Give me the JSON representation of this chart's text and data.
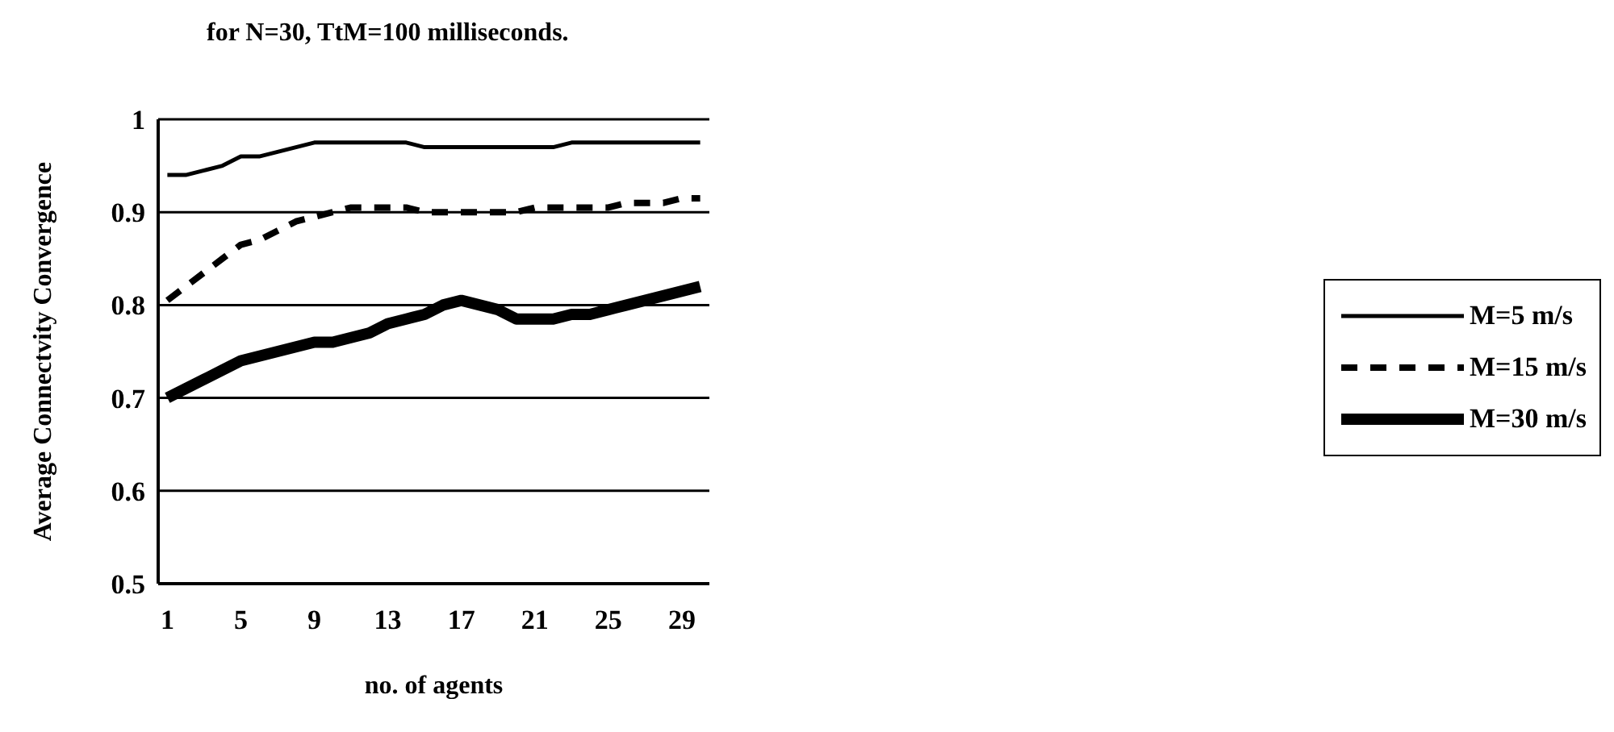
{
  "chart_data": {
    "type": "line",
    "title": "for N=30, TtM=100 milliseconds.",
    "xlabel": "no. of agents",
    "ylabel": "Average Connectvity Convergence",
    "x": [
      1,
      2,
      3,
      4,
      5,
      6,
      7,
      8,
      9,
      10,
      11,
      12,
      13,
      14,
      15,
      16,
      17,
      18,
      19,
      20,
      21,
      22,
      23,
      24,
      25,
      26,
      27,
      28,
      29,
      30
    ],
    "xlim": [
      0.5,
      30.5
    ],
    "xticks": [
      1,
      5,
      9,
      13,
      17,
      21,
      25,
      29
    ],
    "ylim": [
      0.5,
      1
    ],
    "yticks": [
      0.5,
      0.6,
      0.7,
      0.8,
      0.9,
      1
    ],
    "grid": "y",
    "legend": "right",
    "marker": "none",
    "series": [
      {
        "name": "M=5 m/s",
        "color": "#000000",
        "line_style": "solid",
        "values": [
          0.94,
          0.94,
          0.945,
          0.95,
          0.96,
          0.96,
          0.965,
          0.97,
          0.975,
          0.975,
          0.975,
          0.975,
          0.975,
          0.975,
          0.97,
          0.97,
          0.97,
          0.97,
          0.97,
          0.97,
          0.97,
          0.97,
          0.975,
          0.975,
          0.975,
          0.975,
          0.975,
          0.975,
          0.975,
          0.975
        ]
      },
      {
        "name": "M=15 m/s",
        "color": "#000000",
        "line_style": "dashed",
        "values": [
          0.805,
          0.82,
          0.835,
          0.85,
          0.865,
          0.87,
          0.88,
          0.89,
          0.895,
          0.9,
          0.905,
          0.905,
          0.905,
          0.905,
          0.9,
          0.9,
          0.9,
          0.9,
          0.9,
          0.9,
          0.905,
          0.905,
          0.905,
          0.905,
          0.905,
          0.91,
          0.91,
          0.91,
          0.915,
          0.915
        ]
      },
      {
        "name": "M=30 m/s",
        "color": "#000000",
        "line_style": "solid",
        "values": [
          0.7,
          0.71,
          0.72,
          0.73,
          0.74,
          0.745,
          0.75,
          0.755,
          0.76,
          0.76,
          0.765,
          0.77,
          0.78,
          0.785,
          0.79,
          0.8,
          0.805,
          0.8,
          0.795,
          0.785,
          0.785,
          0.785,
          0.79,
          0.79,
          0.795,
          0.8,
          0.805,
          0.81,
          0.815,
          0.82
        ]
      }
    ]
  }
}
